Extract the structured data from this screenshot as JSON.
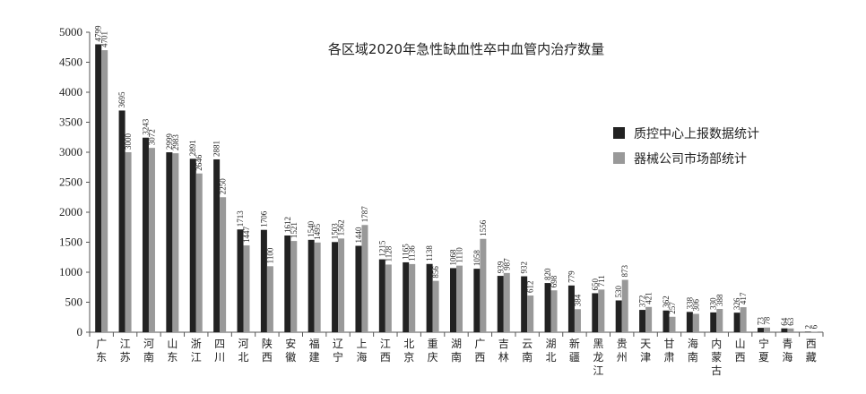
{
  "chart_data": {
    "type": "bar",
    "title": "各区域2020年急性缺血性卒中血管内治疗数量",
    "xlabel": "",
    "ylabel": "",
    "ylim": [
      0,
      5000
    ],
    "yticks": [
      0,
      500,
      1000,
      1500,
      2000,
      2500,
      3000,
      3500,
      4000,
      4500,
      5000
    ],
    "grid": false,
    "legend_position": "right",
    "categories": [
      "广东",
      "江苏",
      "河南",
      "山东",
      "浙江",
      "四川",
      "河北",
      "陕西",
      "安徽",
      "福建",
      "辽宁",
      "上海",
      "江西",
      "北京",
      "重庆",
      "湖南",
      "广西",
      "吉林",
      "云南",
      "湖北",
      "新疆",
      "黑龙江",
      "贵州",
      "天津",
      "甘肃",
      "海南",
      "内蒙古",
      "山西",
      "宁夏",
      "青海",
      "西藏"
    ],
    "series": [
      {
        "name": "质控中心上报数据统计",
        "color": "#222222",
        "values": [
          4799,
          3695,
          3243,
          2999,
          2891,
          2881,
          1713,
          1706,
          1612,
          1540,
          1503,
          1440,
          1215,
          1165,
          1138,
          1068,
          1058,
          939,
          932,
          820,
          779,
          650,
          530,
          372,
          362,
          338,
          330,
          326,
          73,
          64,
          2
        ]
      },
      {
        "name": "器械公司市场部统计",
        "color": "#999999",
        "values": [
          4701,
          3000,
          3072,
          2983,
          2646,
          2250,
          1447,
          1100,
          1521,
          1495,
          1562,
          1787,
          1128,
          1136,
          856,
          1110,
          1556,
          987,
          612,
          698,
          384,
          711,
          873,
          421,
          257,
          306,
          388,
          417,
          78,
          63,
          6
        ]
      }
    ]
  }
}
